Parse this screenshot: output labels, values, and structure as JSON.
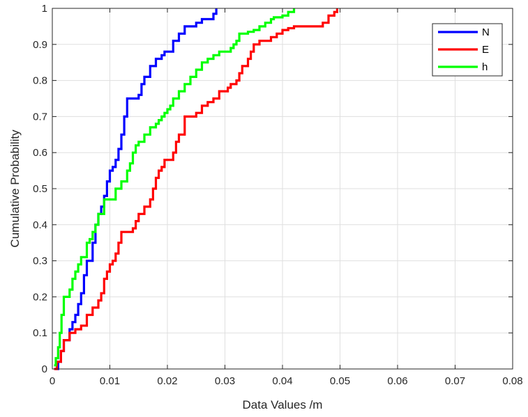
{
  "chart_data": {
    "type": "line",
    "xlabel": "Data Values /m",
    "ylabel": "Cumulative Probability",
    "xlim": [
      0,
      0.08
    ],
    "ylim": [
      0,
      1
    ],
    "grid": true,
    "legend_position": "top-right",
    "x_ticks": [
      "0",
      "0.01",
      "0.02",
      "0.03",
      "0.04",
      "0.05",
      "0.06",
      "0.07",
      "0.08"
    ],
    "y_ticks": [
      "0",
      "0.1",
      "0.2",
      "0.3",
      "0.4",
      "0.5",
      "0.6",
      "0.7",
      "0.8",
      "0.9",
      "1"
    ],
    "series": [
      {
        "name": "N",
        "color": "#0000ff",
        "x": [
          0.0005,
          0.001,
          0.0015,
          0.002,
          0.003,
          0.0035,
          0.004,
          0.0045,
          0.005,
          0.0055,
          0.006,
          0.007,
          0.0075,
          0.008,
          0.0085,
          0.009,
          0.0095,
          0.01,
          0.0105,
          0.011,
          0.0115,
          0.012,
          0.0125,
          0.013,
          0.015,
          0.0155,
          0.016,
          0.017,
          0.018,
          0.019,
          0.0195,
          0.021,
          0.022,
          0.023,
          0.025,
          0.026,
          0.028,
          0.0285
        ],
        "y": [
          0,
          0.02,
          0.05,
          0.08,
          0.11,
          0.13,
          0.15,
          0.18,
          0.21,
          0.26,
          0.3,
          0.35,
          0.4,
          0.43,
          0.45,
          0.48,
          0.52,
          0.55,
          0.56,
          0.58,
          0.61,
          0.65,
          0.7,
          0.75,
          0.76,
          0.79,
          0.81,
          0.84,
          0.86,
          0.87,
          0.88,
          0.91,
          0.93,
          0.95,
          0.96,
          0.97,
          0.985,
          1.0
        ]
      },
      {
        "name": "E",
        "color": "#ff0000",
        "x": [
          0.0003,
          0.0008,
          0.0015,
          0.002,
          0.003,
          0.004,
          0.005,
          0.006,
          0.007,
          0.008,
          0.0085,
          0.009,
          0.0095,
          0.01,
          0.0105,
          0.011,
          0.0115,
          0.012,
          0.014,
          0.0145,
          0.015,
          0.016,
          0.017,
          0.0175,
          0.018,
          0.0185,
          0.019,
          0.0195,
          0.021,
          0.0215,
          0.022,
          0.023,
          0.025,
          0.026,
          0.027,
          0.028,
          0.029,
          0.0305,
          0.031,
          0.032,
          0.0325,
          0.033,
          0.034,
          0.0345,
          0.035,
          0.036,
          0.038,
          0.039,
          0.04,
          0.041,
          0.042,
          0.047,
          0.048,
          0.049,
          0.0495
        ],
        "y": [
          0,
          0.02,
          0.05,
          0.08,
          0.1,
          0.11,
          0.12,
          0.15,
          0.17,
          0.19,
          0.21,
          0.25,
          0.27,
          0.29,
          0.3,
          0.32,
          0.35,
          0.38,
          0.39,
          0.41,
          0.43,
          0.45,
          0.47,
          0.5,
          0.53,
          0.55,
          0.56,
          0.58,
          0.6,
          0.63,
          0.65,
          0.7,
          0.71,
          0.73,
          0.74,
          0.75,
          0.77,
          0.78,
          0.79,
          0.8,
          0.82,
          0.84,
          0.86,
          0.88,
          0.9,
          0.91,
          0.92,
          0.93,
          0.94,
          0.945,
          0.95,
          0.96,
          0.98,
          0.99,
          1.0
        ]
      },
      {
        "name": "h",
        "color": "#00ff00",
        "x": [
          0.0003,
          0.0006,
          0.001,
          0.0013,
          0.0016,
          0.002,
          0.003,
          0.0035,
          0.004,
          0.0045,
          0.005,
          0.006,
          0.0065,
          0.007,
          0.0075,
          0.008,
          0.009,
          0.011,
          0.012,
          0.013,
          0.0135,
          0.014,
          0.0145,
          0.015,
          0.016,
          0.017,
          0.018,
          0.0185,
          0.019,
          0.0195,
          0.02,
          0.0205,
          0.021,
          0.022,
          0.023,
          0.024,
          0.025,
          0.026,
          0.027,
          0.028,
          0.029,
          0.031,
          0.0315,
          0.032,
          0.0325,
          0.034,
          0.035,
          0.036,
          0.037,
          0.038,
          0.0385,
          0.04,
          0.041,
          0.042
        ],
        "y": [
          0.01,
          0.03,
          0.06,
          0.1,
          0.15,
          0.2,
          0.22,
          0.25,
          0.27,
          0.29,
          0.31,
          0.35,
          0.36,
          0.38,
          0.4,
          0.43,
          0.47,
          0.5,
          0.52,
          0.55,
          0.57,
          0.6,
          0.62,
          0.63,
          0.65,
          0.67,
          0.68,
          0.69,
          0.7,
          0.71,
          0.72,
          0.73,
          0.75,
          0.77,
          0.79,
          0.81,
          0.83,
          0.85,
          0.86,
          0.87,
          0.88,
          0.89,
          0.9,
          0.91,
          0.93,
          0.935,
          0.94,
          0.95,
          0.96,
          0.97,
          0.975,
          0.98,
          0.99,
          1.0
        ]
      }
    ]
  }
}
